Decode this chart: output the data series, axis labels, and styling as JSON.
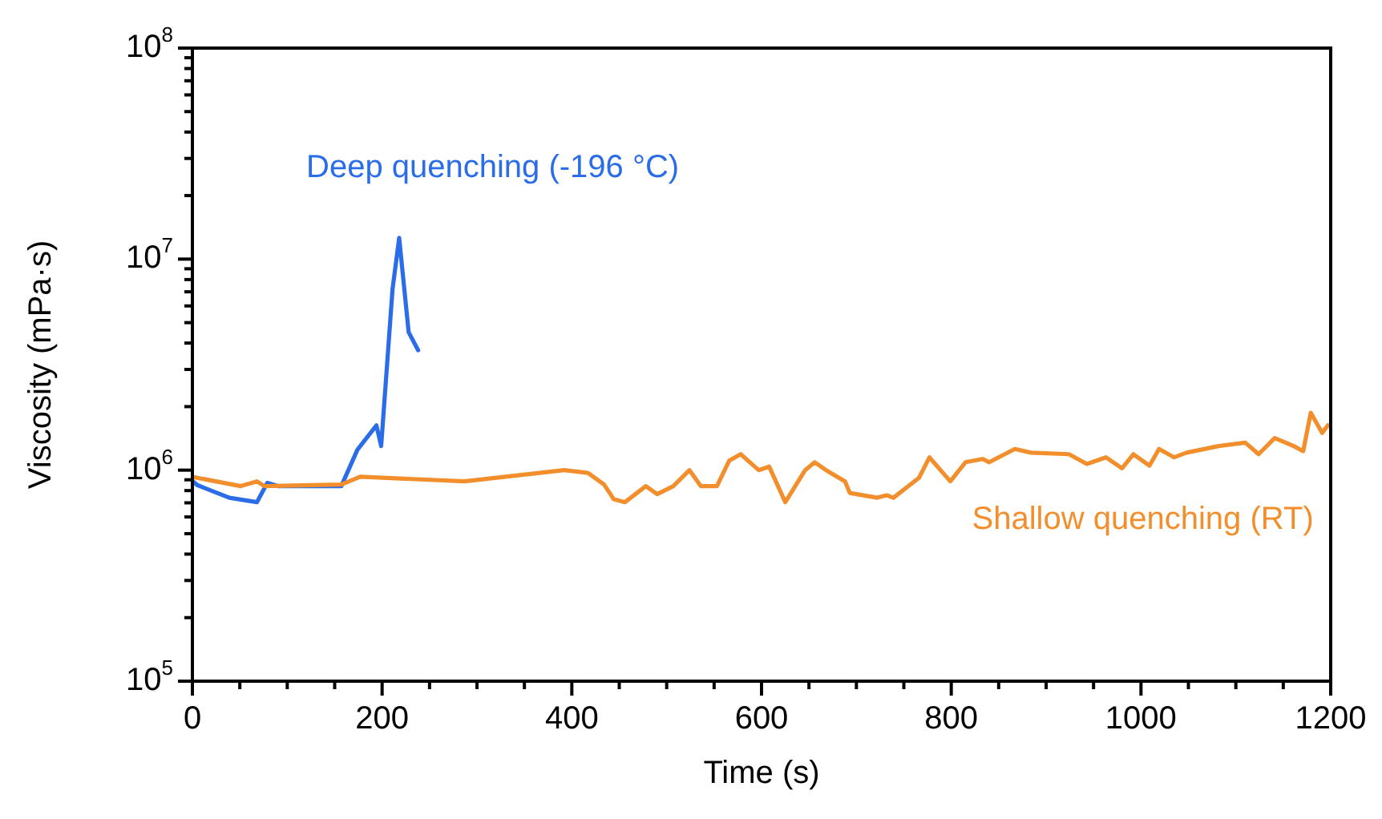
{
  "chart_data": {
    "type": "line",
    "xlabel": "Time (s)",
    "ylabel": "Viscosity (mPa·s)",
    "log": "y",
    "marker": "none",
    "line_style": "solid",
    "xlim": [
      0,
      1200
    ],
    "xticks": [
      0,
      {
        "value": 50,
        "label": null
      },
      {
        "value": 100,
        "label": null
      },
      {
        "value": 150,
        "label": null
      },
      200,
      {
        "value": 250,
        "label": null
      },
      {
        "value": 300,
        "label": null
      },
      {
        "value": 350,
        "label": null
      },
      400,
      {
        "value": 450,
        "label": null
      },
      {
        "value": 500,
        "label": null
      },
      {
        "value": 550,
        "label": null
      },
      600,
      {
        "value": 650,
        "label": null
      },
      {
        "value": 700,
        "label": null
      },
      {
        "value": 750,
        "label": null
      },
      800,
      {
        "value": 850,
        "label": null
      },
      {
        "value": 900,
        "label": null
      },
      {
        "value": 950,
        "label": null
      },
      1000,
      {
        "value": 1050,
        "label": null
      },
      {
        "value": 1100,
        "label": null
      },
      {
        "value": 1150,
        "label": null
      },
      1200
    ],
    "ylim": [
      100000,
      100000000
    ],
    "yticks": [
      {
        "value": 100000,
        "label": "10$^{5}$"
      },
      {
        "value": 200000,
        "label": null
      },
      {
        "value": 300000,
        "label": null
      },
      {
        "value": 400000,
        "label": null
      },
      {
        "value": 500000,
        "label": null
      },
      {
        "value": 600000,
        "label": null
      },
      {
        "value": 700000,
        "label": null
      },
      {
        "value": 800000,
        "label": null
      },
      {
        "value": 900000,
        "label": null
      },
      {
        "value": 1000000,
        "label": "10$^{6}$"
      },
      {
        "value": 2000000,
        "label": null
      },
      {
        "value": 3000000,
        "label": null
      },
      {
        "value": 4000000,
        "label": null
      },
      {
        "value": 5000000,
        "label": null
      },
      {
        "value": 6000000,
        "label": null
      },
      {
        "value": 7000000,
        "label": null
      },
      {
        "value": 8000000,
        "label": null
      },
      {
        "value": 9000000,
        "label": null
      },
      {
        "value": 10000000,
        "label": "10$^{7}$"
      },
      {
        "value": 20000000,
        "label": null
      },
      {
        "value": 30000000,
        "label": null
      },
      {
        "value": 40000000,
        "label": null
      },
      {
        "value": 50000000,
        "label": null
      },
      {
        "value": 60000000,
        "label": null
      },
      {
        "value": 70000000,
        "label": null
      },
      {
        "value": 80000000,
        "label": null
      },
      {
        "value": 90000000,
        "label": null
      },
      {
        "value": 100000000,
        "label": "10$^{8}$"
      }
    ],
    "series": [
      {
        "name": "Shallow quenching (RT)",
        "color": "#f28e2b",
        "x": [
          0,
          5,
          51,
          68,
          76,
          157,
          177,
          287,
          392,
          417,
          434,
          444,
          456,
          478,
          490,
          507,
          524,
          536,
          553,
          566,
          578,
          597,
          608,
          625,
          646,
          656,
          668,
          688,
          693,
          722,
          732,
          739,
          766,
          777,
          799,
          815,
          833,
          840,
          867,
          884,
          924,
          943,
          963,
          980,
          992,
          1009,
          1019,
          1035,
          1048,
          1082,
          1110,
          1124,
          1141,
          1161,
          1171,
          1179,
          1191,
          1197
        ],
        "values": [
          930000,
          920000,
          840000,
          885000,
          840000,
          855000,
          930000,
          885000,
          1000000,
          970000,
          855000,
          730000,
          705000,
          840000,
          770000,
          840000,
          1000000,
          840000,
          840000,
          1110000,
          1190000,
          1000000,
          1040000,
          705000,
          1000000,
          1090000,
          1000000,
          885000,
          780000,
          740000,
          760000,
          740000,
          920000,
          1150000,
          885000,
          1090000,
          1130000,
          1090000,
          1260000,
          1210000,
          1190000,
          1070000,
          1150000,
          1020000,
          1190000,
          1050000,
          1260000,
          1150000,
          1210000,
          1300000,
          1350000,
          1190000,
          1420000,
          1300000,
          1230000,
          1870000,
          1500000,
          1630000
        ]
      },
      {
        "name": "Deep quenching (-196 °C)",
        "color": "#2b6de8",
        "x": [
          0,
          5,
          39,
          68,
          79,
          90,
          157,
          174,
          194,
          199,
          211,
          218,
          228,
          238
        ],
        "values": [
          890000,
          850000,
          740000,
          705000,
          870000,
          840000,
          840000,
          1250000,
          1630000,
          1300000,
          7200000,
          12600000,
          4500000,
          3700000
        ]
      }
    ]
  }
}
